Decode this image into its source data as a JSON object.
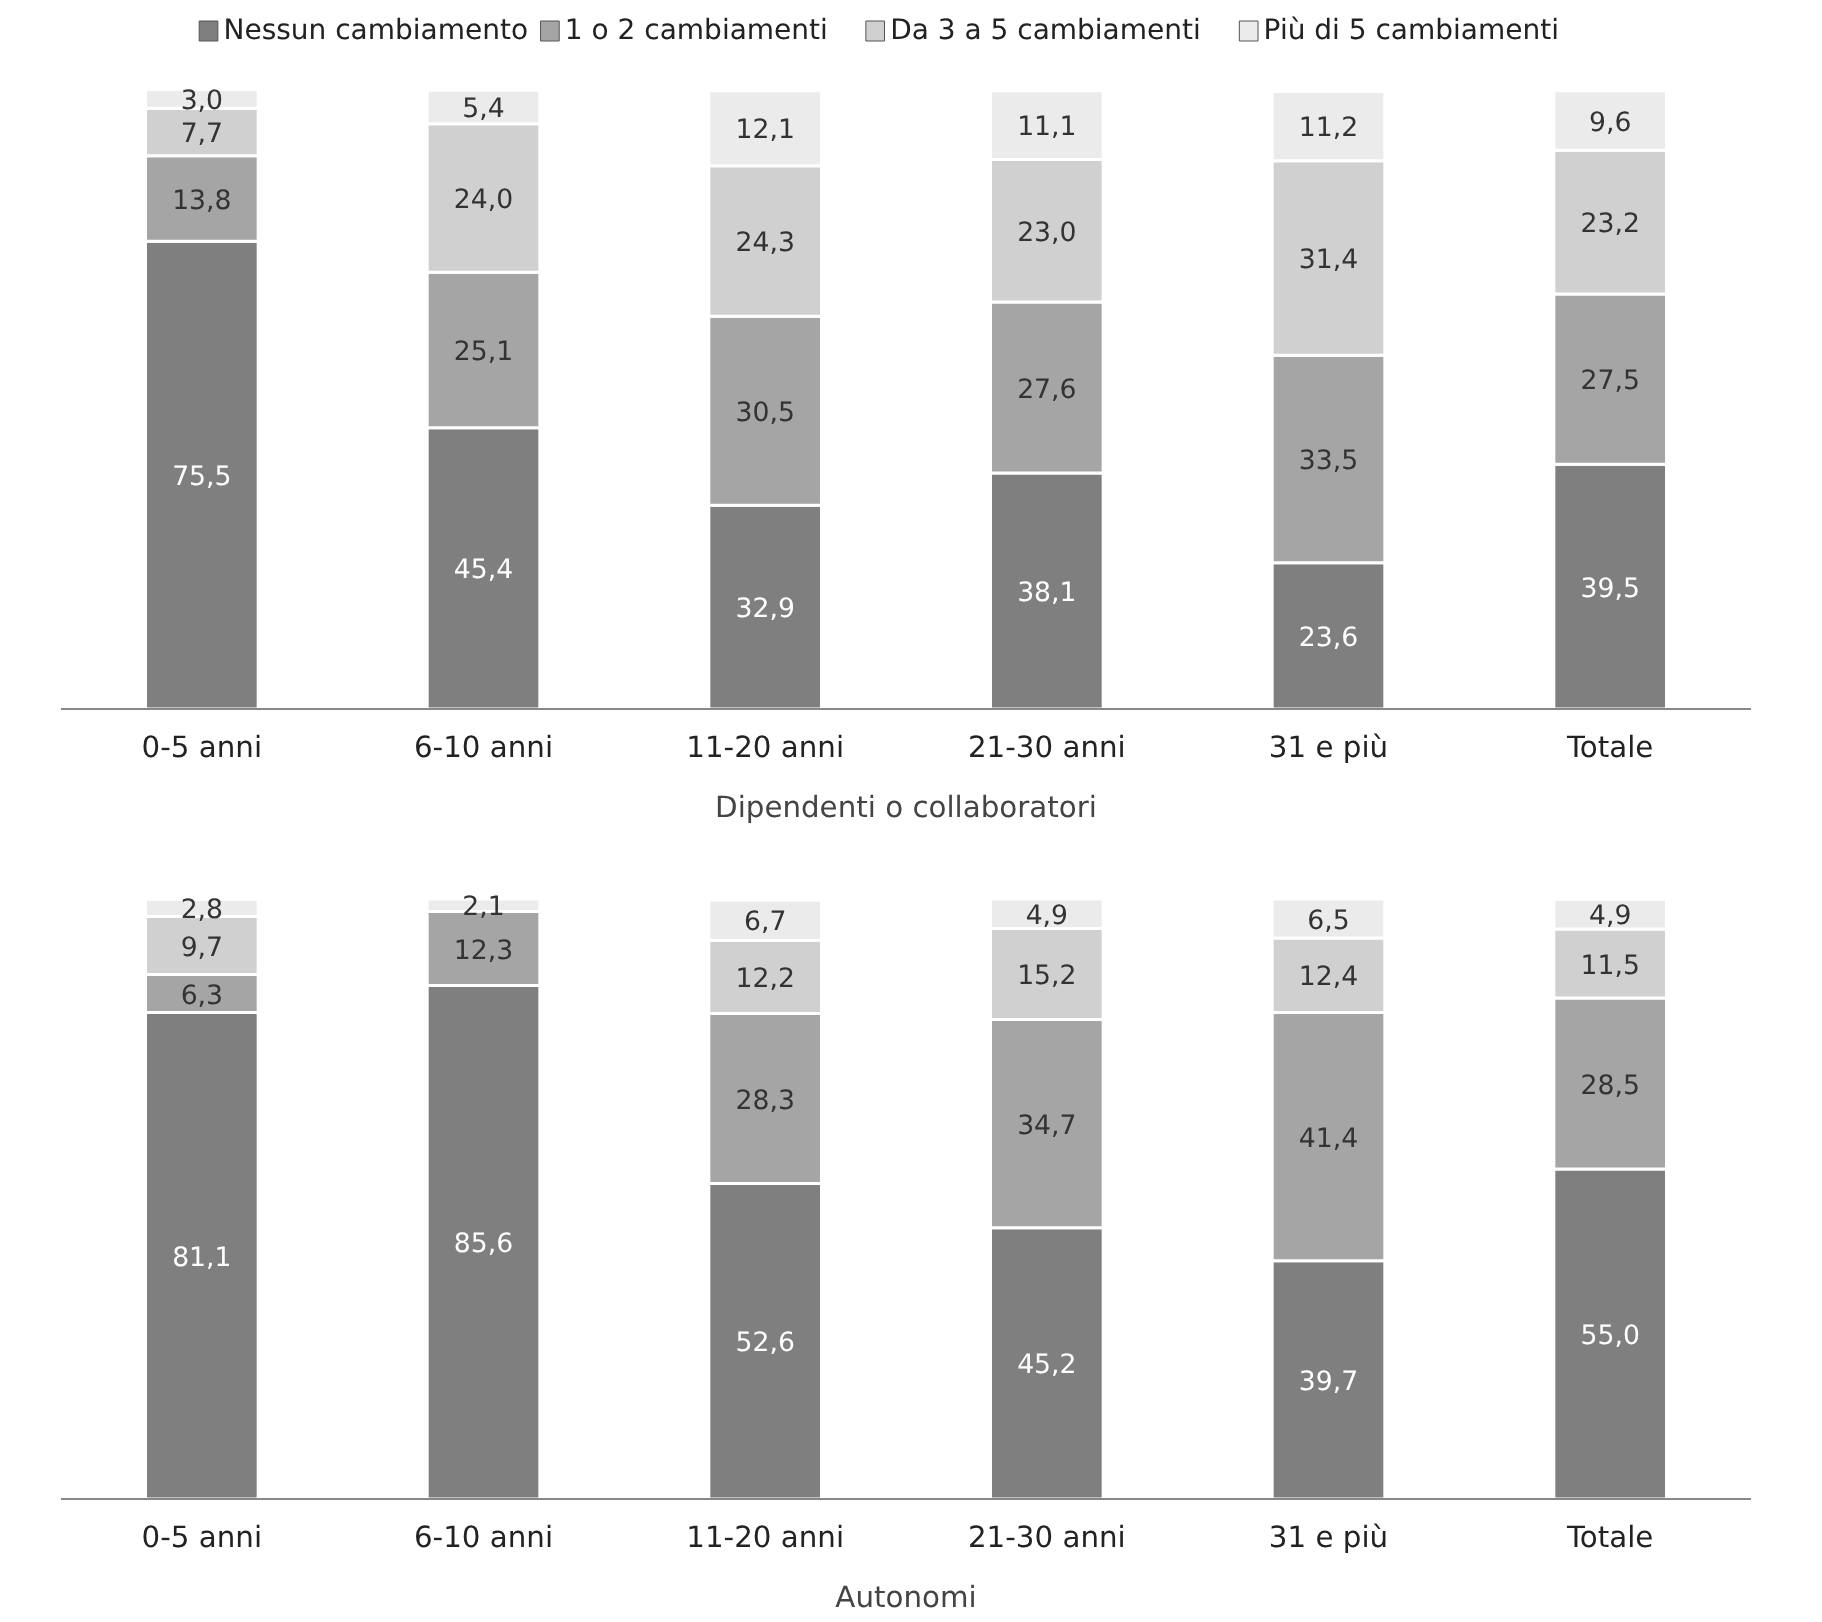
{
  "chart_data": [
    {
      "type": "bar",
      "stacked": true,
      "xlabel": "Dipendenti o collaboratori",
      "categories": [
        "0-5 anni",
        "6-10 anni",
        "11-20 anni",
        "21-30 anni",
        "31 e più",
        "Totale"
      ],
      "legend": "top",
      "grid": false,
      "data_labels": true,
      "series": [
        {
          "name": "Nessun cambiamento",
          "color": "#7f7f7f",
          "values": [
            75.5,
            45.4,
            32.9,
            38.1,
            23.6,
            39.5
          ],
          "value_labels": [
            "75,5",
            "45,4",
            "32,9",
            "38,1",
            "23,6",
            "39,5"
          ]
        },
        {
          "name": "1 o 2 cambiamenti",
          "color": "#a5a5a5",
          "values": [
            13.8,
            25.1,
            30.5,
            27.6,
            33.5,
            27.5
          ],
          "value_labels": [
            "13,8",
            "25,1",
            "30,5",
            "27,6",
            "33,5",
            "27,5"
          ]
        },
        {
          "name": "Da 3 a 5 cambiamenti",
          "color": "#d0d0d0",
          "values": [
            7.7,
            24.0,
            24.3,
            23.0,
            31.4,
            23.2
          ],
          "value_labels": [
            "7,7",
            "24,0",
            "24,3",
            "23,0",
            "31,4",
            "23,2"
          ]
        },
        {
          "name": "Più di 5 cambiamenti",
          "color": "#ebebeb",
          "values": [
            3.0,
            5.4,
            12.1,
            11.1,
            11.2,
            9.6
          ],
          "value_labels": [
            "3,0",
            "5,4",
            "12,1",
            "11,1",
            "11,2",
            "9,6"
          ]
        }
      ]
    },
    {
      "type": "bar",
      "stacked": true,
      "xlabel": "Autonomi",
      "categories": [
        "0-5 anni",
        "6-10 anni",
        "11-20 anni",
        "21-30 anni",
        "31 e più",
        "Totale"
      ],
      "grid": false,
      "data_labels": true,
      "series": [
        {
          "color": "#7f7f7f",
          "values": [
            81.1,
            85.6,
            52.6,
            45.2,
            39.7,
            55.0
          ],
          "value_labels": [
            "81,1",
            "85,6",
            "52,6",
            "45,2",
            "39,7",
            "55,0"
          ]
        },
        {
          "color": "#a5a5a5",
          "values": [
            6.3,
            12.3,
            28.3,
            34.7,
            41.4,
            28.5
          ],
          "value_labels": [
            "6,3",
            "12,3",
            "28,3",
            "34,7",
            "41,4",
            "28,5"
          ]
        },
        {
          "color": "#d0d0d0",
          "values": [
            9.7,
            null,
            12.2,
            15.2,
            12.4,
            11.5
          ],
          "value_labels": [
            "9,7",
            null,
            "12,2",
            "15,2",
            "12,4",
            "11,5"
          ]
        },
        {
          "color": "#ebebeb",
          "values": [
            2.8,
            2.1,
            6.7,
            4.9,
            6.5,
            4.9
          ],
          "value_labels": [
            "2,8",
            "2,1",
            "6,7",
            "4,9",
            "6,5",
            "4,9"
          ]
        }
      ]
    }
  ]
}
